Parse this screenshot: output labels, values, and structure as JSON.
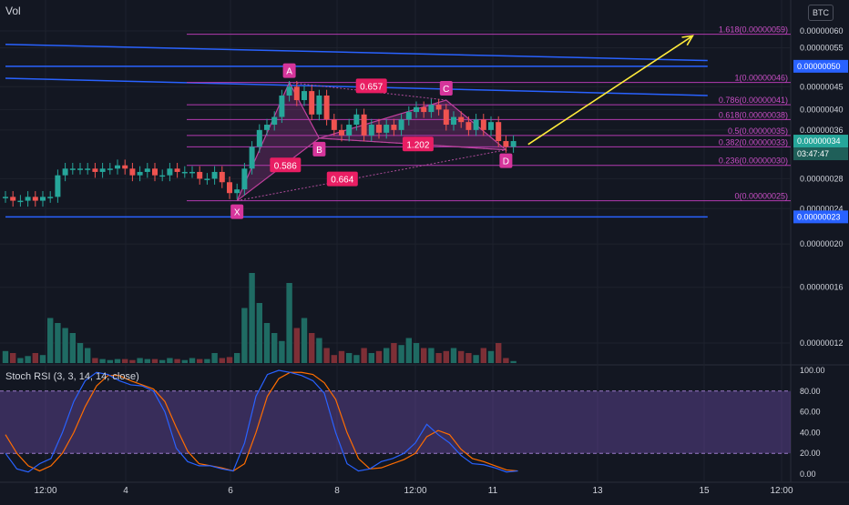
{
  "chart_data": {
    "type": "candlestick",
    "header": {
      "volume_label": "Vol",
      "currency_label": "BTC"
    },
    "price_axis": {
      "scale": "log",
      "ticks": [
        "0.00000060",
        "0.00000055",
        "0.00000045",
        "0.00000040",
        "0.00000036",
        "0.00000028",
        "0.00000024",
        "0.00000020",
        "0.00000016",
        "0.00000012"
      ],
      "tick_values": [
        6e-07,
        5.5e-07,
        4.5e-07,
        4e-07,
        3.6e-07,
        2.8e-07,
        2.4e-07,
        2e-07,
        1.6e-07,
        1.2e-07
      ],
      "badges": [
        {
          "text": "0.00000050",
          "value": 5e-07,
          "color": "#2962ff"
        },
        {
          "text": "0.00000034",
          "value": 3.4e-07,
          "color": "#26a69a"
        },
        {
          "text": "0.00000023",
          "value": 2.3e-07,
          "color": "#2962ff"
        }
      ],
      "countdown": "03:47:47"
    },
    "time_axis": {
      "labels": [
        "12:00",
        "4",
        "6",
        "8",
        "12:00",
        "11",
        "13",
        "15",
        "12:00"
      ]
    },
    "candles": {
      "opens": [
        2.55,
        2.55,
        2.5,
        2.5,
        2.55,
        2.5,
        2.55,
        2.55,
        2.85,
        2.95,
        2.95,
        2.95,
        2.95,
        2.9,
        2.95,
        2.95,
        3.0,
        2.95,
        2.85,
        2.9,
        2.95,
        2.85,
        2.85,
        2.95,
        2.9,
        2.9,
        2.9,
        2.8,
        2.8,
        2.9,
        2.75,
        2.6,
        2.65,
        2.95,
        3.3,
        3.6,
        3.7,
        3.85,
        4.3,
        4.5,
        4.2,
        4.4,
        3.9,
        4.3,
        3.8,
        3.6,
        3.5,
        3.7,
        3.9,
        3.5,
        3.7,
        3.55,
        3.7,
        3.6,
        3.8,
        3.95,
        4.05,
        3.95,
        4.1,
        4.0,
        3.7,
        3.85,
        3.75,
        3.6,
        3.8,
        3.6,
        3.75,
        3.4,
        3.3
      ],
      "closes": [
        2.55,
        2.5,
        2.5,
        2.55,
        2.5,
        2.55,
        2.55,
        2.85,
        2.95,
        2.95,
        2.95,
        2.95,
        2.9,
        2.95,
        2.95,
        3.0,
        2.95,
        2.85,
        2.9,
        2.95,
        2.85,
        2.85,
        2.95,
        2.9,
        2.9,
        2.9,
        2.8,
        2.8,
        2.9,
        2.75,
        2.6,
        2.65,
        2.95,
        3.3,
        3.6,
        3.7,
        3.85,
        4.3,
        4.5,
        4.2,
        4.4,
        3.9,
        4.3,
        3.8,
        3.6,
        3.5,
        3.7,
        3.9,
        3.5,
        3.7,
        3.55,
        3.7,
        3.6,
        3.8,
        3.95,
        4.05,
        3.95,
        4.1,
        4.0,
        3.7,
        3.85,
        3.75,
        3.6,
        3.8,
        3.6,
        3.75,
        3.4,
        3.3,
        3.4
      ],
      "unit": "1e-7 BTC"
    },
    "volume": {
      "values": [
        0.12,
        0.1,
        0.05,
        0.07,
        0.1,
        0.08,
        0.45,
        0.4,
        0.35,
        0.3,
        0.2,
        0.15,
        0.05,
        0.04,
        0.03,
        0.04,
        0.04,
        0.03,
        0.05,
        0.04,
        0.04,
        0.03,
        0.05,
        0.04,
        0.03,
        0.05,
        0.04,
        0.04,
        0.1,
        0.05,
        0.06,
        0.1,
        0.55,
        0.9,
        0.6,
        0.4,
        0.3,
        0.22,
        0.8,
        0.35,
        0.45,
        0.3,
        0.25,
        0.15,
        0.08,
        0.12,
        0.1,
        0.08,
        0.15,
        0.1,
        0.12,
        0.15,
        0.2,
        0.18,
        0.25,
        0.2,
        0.15,
        0.15,
        0.1,
        0.12,
        0.15,
        0.12,
        0.1,
        0.08,
        0.15,
        0.12,
        0.2,
        0.05,
        0.02
      ]
    },
    "harmonic": {
      "points": [
        {
          "label": "X",
          "index": 31,
          "price": 2.5
        },
        {
          "label": "A",
          "index": 38,
          "price": 4.6
        },
        {
          "label": "B",
          "index": 42,
          "price": 3.45
        },
        {
          "label": "C",
          "index": 59,
          "price": 4.2
        },
        {
          "label": "D",
          "index": 67,
          "price": 3.25
        }
      ],
      "ratios": [
        {
          "text": "0.586",
          "color": "#e91e63"
        },
        {
          "text": "0.657",
          "color": "#e91e63"
        },
        {
          "text": "1.202",
          "color": "#e91e63"
        },
        {
          "text": "0.664",
          "color": "#e91e63"
        }
      ]
    },
    "fib_levels": [
      {
        "text": "1.618(0.00000059)",
        "value": 5.9e-07
      },
      {
        "text": "1(0.00000046)",
        "value": 4.6e-07
      },
      {
        "text": "0.786(0.00000041)",
        "value": 4.1e-07
      },
      {
        "text": "0.618(0.00000038)",
        "value": 3.8e-07
      },
      {
        "text": "0.5(0.00000035)",
        "value": 3.5e-07
      },
      {
        "text": "0.382(0.00000033)",
        "value": 3.3e-07
      },
      {
        "text": "0.236(0.00000030)",
        "value": 3e-07
      },
      {
        "text": "0(0.00000025)",
        "value": 2.5e-07
      }
    ],
    "trendlines": [
      {
        "color": "#2962ff",
        "from": {
          "index": 0,
          "price": 5.6
        },
        "to": {
          "index": 94,
          "price": 5.15
        }
      },
      {
        "color": "#2962ff",
        "from": {
          "index": 0,
          "price": 4.7
        },
        "to": {
          "index": 94,
          "price": 4.3
        }
      },
      {
        "color": "#2962ff",
        "from": {
          "index": 0,
          "price": 5.0
        },
        "to": {
          "index": 94,
          "price": 5.0
        }
      },
      {
        "color": "#2962ff",
        "from": {
          "index": 0,
          "price": 2.3
        },
        "to": {
          "index": 94,
          "price": 2.3
        }
      }
    ],
    "projection_arrow": {
      "color": "#ffeb3b",
      "from": {
        "index": 69,
        "price": 3.25
      },
      "to": {
        "index": 92,
        "price": 5.85
      }
    },
    "stoch_rsi": {
      "label": "Stoch RSI (3, 3, 14, 14, close)",
      "ticks": [
        "100.00",
        "80.00",
        "60.00",
        "40.00",
        "20.00",
        "0.00"
      ],
      "tick_values": [
        100,
        80,
        60,
        40,
        20,
        0
      ],
      "band": [
        20,
        80
      ],
      "k": [
        20,
        5,
        2,
        10,
        15,
        40,
        70,
        90,
        98,
        96,
        90,
        86,
        85,
        80,
        60,
        25,
        12,
        8,
        8,
        5,
        3,
        30,
        75,
        96,
        100,
        98,
        95,
        90,
        78,
        40,
        10,
        3,
        5,
        12,
        15,
        20,
        30,
        48,
        38,
        30,
        18,
        10,
        9,
        6,
        2,
        3
      ],
      "d": [
        38,
        20,
        8,
        3,
        8,
        20,
        40,
        65,
        85,
        95,
        95,
        90,
        86,
        82,
        70,
        45,
        22,
        10,
        8,
        6,
        3,
        10,
        40,
        75,
        92,
        98,
        98,
        96,
        88,
        72,
        40,
        15,
        5,
        6,
        10,
        14,
        20,
        36,
        42,
        38,
        24,
        15,
        12,
        8,
        4,
        3
      ]
    }
  }
}
